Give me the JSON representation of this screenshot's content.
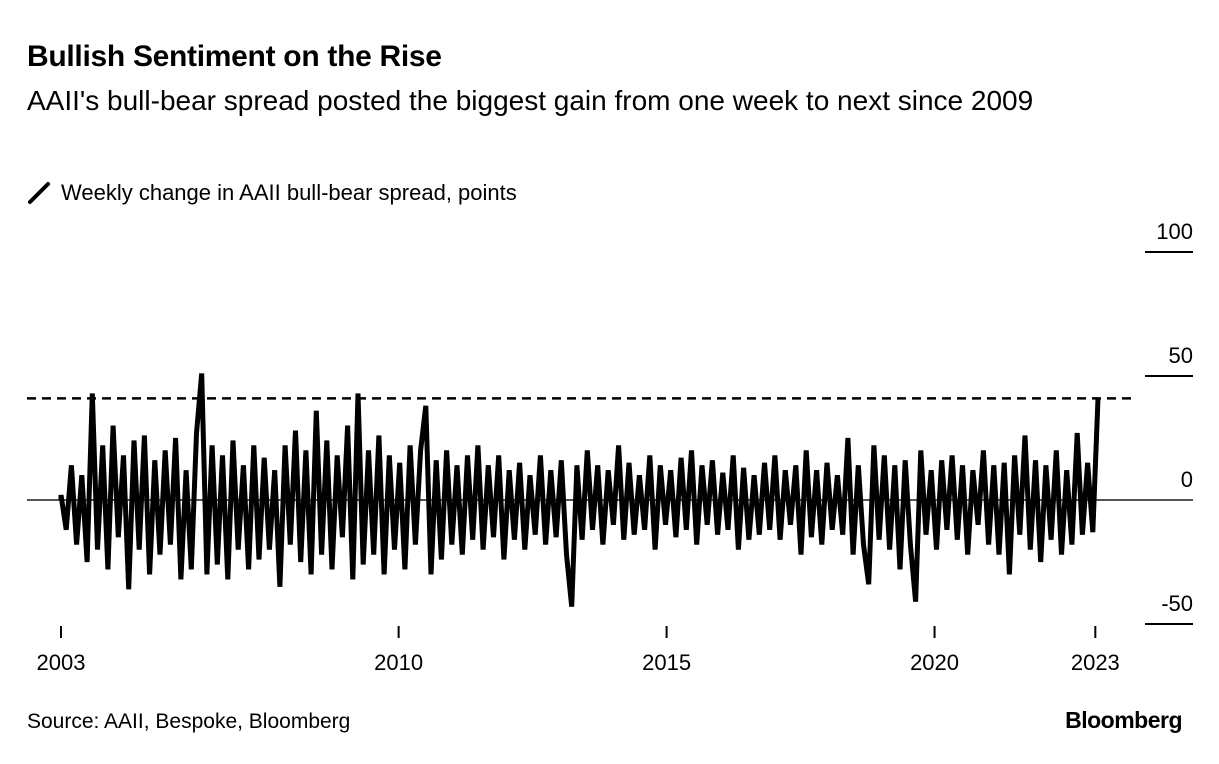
{
  "chart_data": {
    "type": "line",
    "title": "Bullish Sentiment on the Rise",
    "subtitle": "AAII's bull-bear spread posted the biggest gain from one week to next since 2009",
    "legend": [
      {
        "label": "Weekly change in AAII bull-bear spread, points",
        "icon": "pencil-line-icon",
        "color": "#000000"
      }
    ],
    "source": "Source: AAII, Bespoke, Bloomberg",
    "brand": "Bloomberg",
    "xlim": [
      2003.7,
      2023.05
    ],
    "ylim": [
      -50,
      100
    ],
    "x_ticks": [
      {
        "value": 2003.7,
        "label": "2003"
      },
      {
        "value": 2010,
        "label": "2010"
      },
      {
        "value": 2015,
        "label": "2015"
      },
      {
        "value": 2020,
        "label": "2020"
      },
      {
        "value": 2023,
        "label": "2023"
      }
    ],
    "y_ticks": [
      {
        "value": 100,
        "label": "100"
      },
      {
        "value": 50,
        "label": "50"
      },
      {
        "value": 0,
        "label": "0"
      },
      {
        "value": -50,
        "label": "-50"
      }
    ],
    "reference_line": {
      "value": 41,
      "style": "dashed"
    },
    "series": [
      {
        "name": "Weekly change in AAII bull-bear spread, points",
        "x_start": 2003.7,
        "x_end": 2023.05,
        "values": [
          2,
          -12,
          14,
          -18,
          10,
          -25,
          43,
          -20,
          22,
          -28,
          30,
          -15,
          18,
          -36,
          24,
          -20,
          26,
          -30,
          16,
          -22,
          20,
          -18,
          25,
          -32,
          12,
          -28,
          27,
          51,
          -30,
          22,
          -26,
          18,
          -32,
          24,
          -20,
          14,
          -28,
          22,
          -24,
          17,
          -20,
          12,
          -35,
          22,
          -18,
          28,
          -25,
          20,
          -30,
          36,
          -22,
          24,
          -28,
          18,
          -15,
          30,
          -32,
          43,
          -26,
          20,
          -22,
          26,
          -30,
          18,
          -20,
          15,
          -28,
          22,
          -18,
          20,
          38,
          -30,
          16,
          -24,
          20,
          -18,
          14,
          -22,
          18,
          -16,
          22,
          -20,
          14,
          -15,
          18,
          -24,
          12,
          -16,
          15,
          -20,
          10,
          -14,
          18,
          -18,
          12,
          -15,
          16,
          -22,
          -43,
          14,
          -16,
          20,
          -12,
          14,
          -18,
          12,
          -10,
          22,
          -16,
          15,
          -14,
          10,
          -12,
          18,
          -20,
          14,
          -10,
          12,
          -15,
          17,
          -12,
          20,
          -18,
          14,
          -10,
          16,
          -14,
          11,
          -12,
          18,
          -20,
          13,
          -16,
          10,
          -14,
          15,
          -12,
          18,
          -16,
          12,
          -10,
          14,
          -22,
          20,
          -15,
          12,
          -18,
          15,
          -12,
          10,
          -14,
          25,
          -22,
          14,
          -18,
          -34,
          22,
          -16,
          18,
          -20,
          14,
          -28,
          16,
          -18,
          -41,
          20,
          -14,
          12,
          -20,
          16,
          -12,
          18,
          -16,
          14,
          -22,
          12,
          -10,
          20,
          -18,
          14,
          -22,
          15,
          -30,
          18,
          -14,
          26,
          -20,
          16,
          -25,
          14,
          -16,
          20,
          -22,
          12,
          -18,
          27,
          -14,
          15,
          -13,
          41
        ]
      }
    ]
  }
}
